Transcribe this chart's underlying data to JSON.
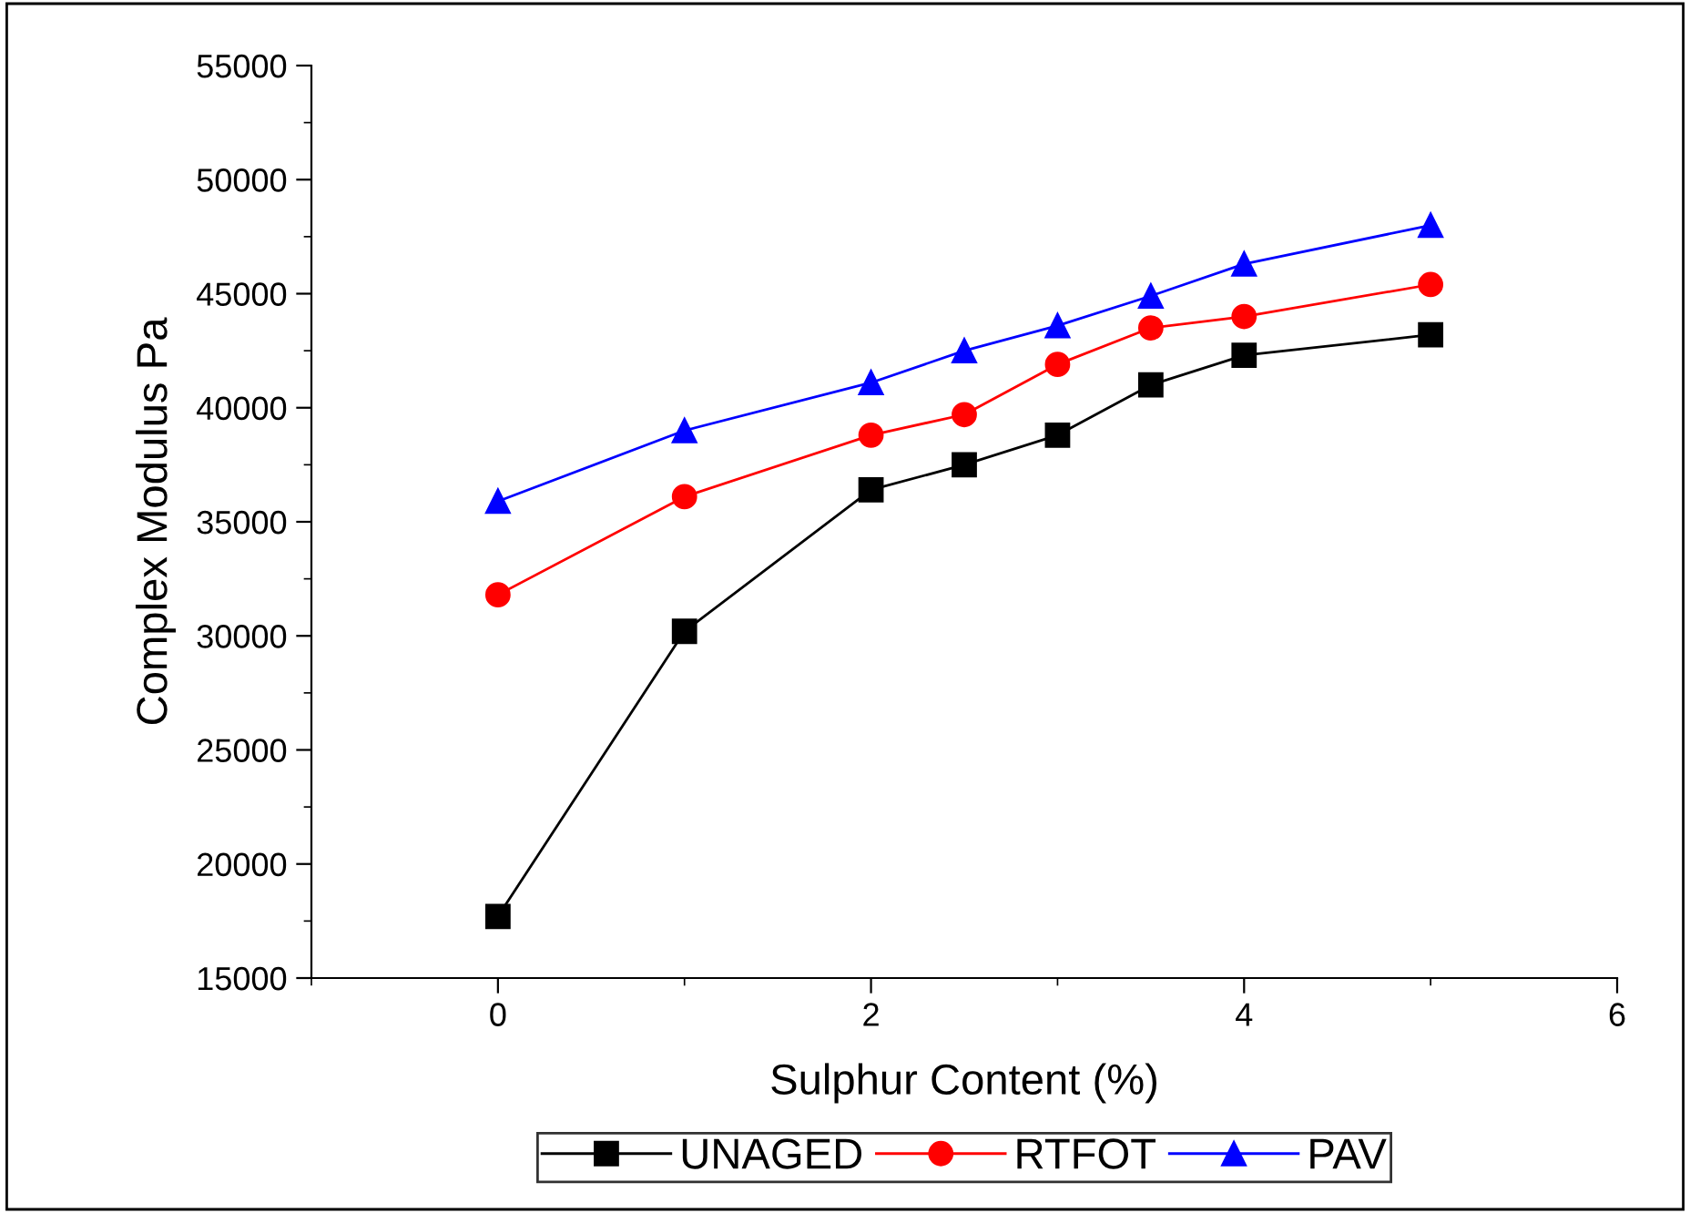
{
  "chart_data": {
    "type": "line",
    "xlabel": "Sulphur Content (%)",
    "ylabel": "Complex Modulus Pa",
    "x": [
      0,
      1,
      2,
      2.5,
      3,
      3.5,
      4,
      5
    ],
    "series": [
      {
        "name": "UNAGED",
        "color": "#000000",
        "marker": "square",
        "values": [
          17700,
          30200,
          36400,
          37500,
          38800,
          41000,
          42300,
          43200
        ]
      },
      {
        "name": "RTFOT",
        "color": "#ff0000",
        "marker": "circle",
        "values": [
          31800,
          36100,
          38800,
          39700,
          41900,
          43500,
          44000,
          45400
        ]
      },
      {
        "name": "PAV",
        "color": "#0000ff",
        "marker": "triangle",
        "values": [
          35900,
          39000,
          41100,
          42500,
          43600,
          44900,
          46300,
          48000
        ]
      }
    ],
    "xlim": [
      -1,
      6
    ],
    "xticks": [
      0,
      2,
      4,
      6
    ],
    "ylim": [
      15000,
      55000
    ],
    "yticks": [
      15000,
      20000,
      25000,
      30000,
      35000,
      40000,
      45000,
      50000,
      55000
    ],
    "grid": false,
    "legend": "bottom",
    "line_style": "solid"
  }
}
